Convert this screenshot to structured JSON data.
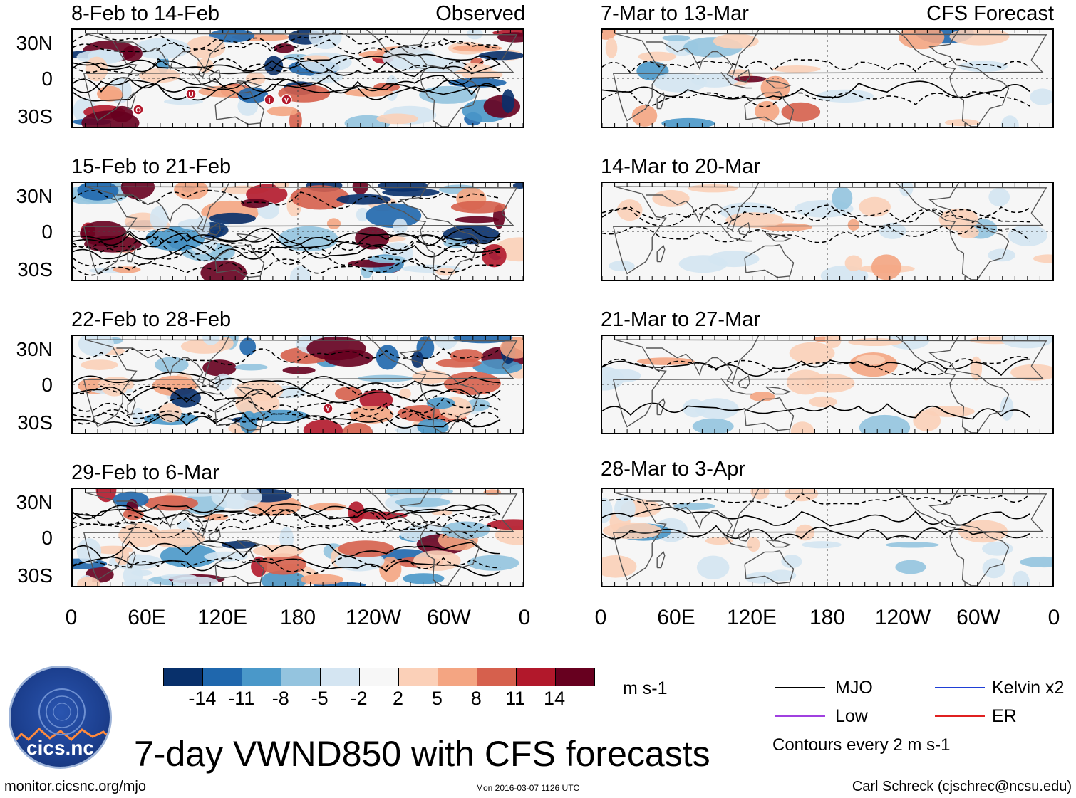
{
  "panels": [
    {
      "label": "8-Feb to 14-Feb",
      "tag": "Observed",
      "kind": "observed",
      "intensity": 1.1
    },
    {
      "label": "7-Mar to 13-Mar",
      "tag": "CFS Forecast",
      "kind": "forecast",
      "intensity": 0.6
    },
    {
      "label": "15-Feb to 21-Feb",
      "tag": "",
      "kind": "observed",
      "intensity": 1.4
    },
    {
      "label": "14-Mar to 20-Mar",
      "tag": "",
      "kind": "forecast",
      "intensity": 0.35
    },
    {
      "label": "22-Feb to 28-Feb",
      "tag": "",
      "kind": "observed",
      "intensity": 1.0
    },
    {
      "label": "21-Mar to 27-Mar",
      "tag": "",
      "kind": "forecast",
      "intensity": 0.3
    },
    {
      "label": "29-Feb to 6-Mar",
      "tag": "",
      "kind": "observed",
      "intensity": 0.9
    },
    {
      "label": "28-Mar to 3-Apr",
      "tag": "",
      "kind": "forecast",
      "intensity": 0.3
    }
  ],
  "lat_labels": [
    "30N",
    "0",
    "30S"
  ],
  "lon_labels": [
    "0",
    "60E",
    "120E",
    "180",
    "120W",
    "60W",
    "0"
  ],
  "colorbar": {
    "colors": [
      "#08306b",
      "#1f67ad",
      "#4a98c9",
      "#94c4df",
      "#d4e5f2",
      "#f7f7f7",
      "#fbd0b8",
      "#f4a582",
      "#d6604d",
      "#b2182b",
      "#67001f"
    ],
    "labels": [
      "-14",
      "-11",
      "-8",
      "-5",
      "-2",
      "2",
      "5",
      "8",
      "11",
      "14"
    ],
    "units": "m s-1"
  },
  "legend": {
    "items": [
      {
        "label": "MJO",
        "color": "#000000"
      },
      {
        "label": "Kelvin x2",
        "color": "#1f3fd6"
      },
      {
        "label": "Low",
        "color": "#a040e0"
      },
      {
        "label": "ER",
        "color": "#e02020"
      }
    ],
    "note": "Contours every 2 m s-1"
  },
  "title": "7-day VWND850 with CFS forecasts",
  "footer": {
    "left": "monitor.cicsnc.org/mjo",
    "center": "Mon 2016-03-07 1126 UTC",
    "right": "Carl Schreck (cjschrec@ncsu.edu)"
  },
  "logo": {
    "name": "cics.nc",
    "ring": "Cooperative Institute for Climate and Satellites"
  },
  "storm_markers": [
    {
      "panel": 0,
      "labels": [
        "O",
        "U",
        "T",
        "V"
      ]
    },
    {
      "panel": 4,
      "labels": [
        "Y"
      ]
    }
  ]
}
